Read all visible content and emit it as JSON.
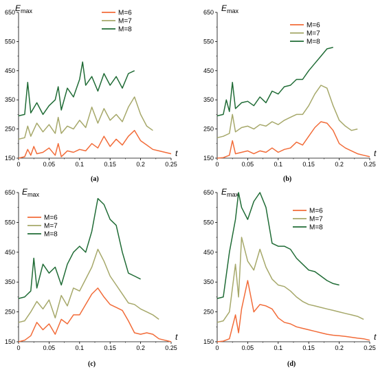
{
  "chart_data": [
    {
      "type": "line",
      "panel_label": "(a)",
      "ylabel_main": "E",
      "ylabel_sub": "max",
      "xlabel": "t",
      "xlim": [
        0,
        0.25
      ],
      "ylim": [
        150,
        650
      ],
      "xticks": [
        "0",
        "0.05",
        "0.1",
        "0.15",
        "0.2",
        "0.25"
      ],
      "yticks": [
        "150",
        "250",
        "350",
        "450",
        "550",
        "650"
      ],
      "legend_position": "top-right",
      "series": [
        {
          "name": "M=6",
          "color": "#f26b38",
          "x": [
            0,
            0.01,
            0.015,
            0.02,
            0.025,
            0.03,
            0.04,
            0.05,
            0.06,
            0.065,
            0.07,
            0.08,
            0.09,
            0.1,
            0.11,
            0.12,
            0.13,
            0.14,
            0.15,
            0.16,
            0.17,
            0.18,
            0.19,
            0.2,
            0.21,
            0.22,
            0.23,
            0.24,
            0.25
          ],
          "y": [
            150,
            155,
            180,
            160,
            190,
            165,
            170,
            185,
            160,
            200,
            155,
            175,
            170,
            180,
            175,
            200,
            185,
            225,
            190,
            215,
            195,
            225,
            245,
            210,
            195,
            180,
            175,
            170,
            165
          ]
        },
        {
          "name": "M=7",
          "color": "#a6a86a",
          "x": [
            0,
            0.01,
            0.015,
            0.02,
            0.03,
            0.04,
            0.05,
            0.06,
            0.065,
            0.07,
            0.08,
            0.09,
            0.1,
            0.11,
            0.12,
            0.13,
            0.14,
            0.15,
            0.16,
            0.17,
            0.18,
            0.19,
            0.2,
            0.21,
            0.22
          ],
          "y": [
            215,
            220,
            260,
            225,
            270,
            240,
            265,
            235,
            290,
            235,
            260,
            250,
            280,
            255,
            325,
            270,
            320,
            280,
            300,
            275,
            325,
            360,
            300,
            260,
            245
          ]
        },
        {
          "name": "M=8",
          "color": "#1f6b35",
          "x": [
            0,
            0.01,
            0.015,
            0.02,
            0.03,
            0.04,
            0.05,
            0.06,
            0.065,
            0.07,
            0.08,
            0.09,
            0.1,
            0.105,
            0.11,
            0.12,
            0.13,
            0.14,
            0.15,
            0.16,
            0.17,
            0.18,
            0.19
          ],
          "y": [
            295,
            300,
            410,
            305,
            340,
            300,
            330,
            350,
            395,
            315,
            390,
            360,
            420,
            480,
            400,
            430,
            380,
            440,
            400,
            430,
            390,
            440,
            450
          ]
        }
      ]
    },
    {
      "type": "line",
      "panel_label": "(b)",
      "ylabel_main": "E",
      "ylabel_sub": "max",
      "xlabel": "t",
      "xlim": [
        0,
        0.25
      ],
      "ylim": [
        150,
        650
      ],
      "xticks": [
        "0",
        "0.05",
        "0.1",
        "0.15",
        "0.2",
        "0.25"
      ],
      "yticks": [
        "150",
        "250",
        "350",
        "450",
        "550",
        "650"
      ],
      "legend_position": "top-right",
      "series": [
        {
          "name": "M=6",
          "color": "#f26b38",
          "x": [
            0,
            0.01,
            0.02,
            0.025,
            0.03,
            0.04,
            0.05,
            0.06,
            0.07,
            0.08,
            0.09,
            0.1,
            0.11,
            0.12,
            0.13,
            0.14,
            0.15,
            0.16,
            0.17,
            0.18,
            0.19,
            0.2,
            0.21,
            0.22,
            0.23,
            0.24,
            0.25
          ],
          "y": [
            150,
            152,
            160,
            210,
            165,
            170,
            175,
            165,
            175,
            170,
            185,
            170,
            180,
            185,
            205,
            195,
            225,
            255,
            275,
            270,
            245,
            200,
            185,
            175,
            165,
            160,
            155
          ]
        },
        {
          "name": "M=7",
          "color": "#a6a86a",
          "x": [
            0,
            0.01,
            0.02,
            0.025,
            0.03,
            0.04,
            0.05,
            0.06,
            0.07,
            0.08,
            0.09,
            0.1,
            0.11,
            0.12,
            0.13,
            0.14,
            0.15,
            0.16,
            0.17,
            0.18,
            0.19,
            0.2,
            0.21,
            0.22,
            0.23
          ],
          "y": [
            220,
            225,
            235,
            300,
            240,
            255,
            260,
            250,
            265,
            260,
            275,
            265,
            280,
            290,
            300,
            300,
            330,
            370,
            400,
            390,
            330,
            280,
            260,
            245,
            250
          ]
        },
        {
          "name": "M=8",
          "color": "#1f6b35",
          "x": [
            0,
            0.01,
            0.015,
            0.02,
            0.025,
            0.03,
            0.04,
            0.05,
            0.06,
            0.07,
            0.08,
            0.09,
            0.1,
            0.11,
            0.12,
            0.13,
            0.14,
            0.15,
            0.16,
            0.17,
            0.18,
            0.19
          ],
          "y": [
            295,
            300,
            350,
            310,
            410,
            320,
            340,
            345,
            330,
            360,
            340,
            380,
            370,
            395,
            400,
            420,
            420,
            450,
            475,
            500,
            525,
            530
          ]
        }
      ]
    },
    {
      "type": "line",
      "panel_label": "(c)",
      "ylabel_main": "E",
      "ylabel_sub": "max",
      "xlabel": "t",
      "xlim": [
        0,
        0.25
      ],
      "ylim": [
        150,
        650
      ],
      "xticks": [
        "0",
        "0.05",
        "0.1",
        "0.15",
        "0.2",
        "0.25"
      ],
      "yticks": [
        "150",
        "250",
        "350",
        "450",
        "550",
        "650"
      ],
      "legend_position": "top-left",
      "series": [
        {
          "name": "M=6",
          "color": "#f26b38",
          "x": [
            0,
            0.01,
            0.02,
            0.03,
            0.04,
            0.05,
            0.06,
            0.07,
            0.08,
            0.09,
            0.1,
            0.11,
            0.12,
            0.13,
            0.14,
            0.15,
            0.16,
            0.17,
            0.18,
            0.19,
            0.2,
            0.21,
            0.22,
            0.23,
            0.24,
            0.25
          ],
          "y": [
            150,
            155,
            170,
            215,
            190,
            210,
            175,
            225,
            210,
            240,
            240,
            275,
            310,
            330,
            300,
            275,
            265,
            255,
            220,
            180,
            175,
            180,
            175,
            160,
            155,
            150
          ]
        },
        {
          "name": "M=7",
          "color": "#a6a86a",
          "x": [
            0,
            0.01,
            0.02,
            0.03,
            0.04,
            0.05,
            0.06,
            0.07,
            0.08,
            0.09,
            0.1,
            0.11,
            0.12,
            0.13,
            0.14,
            0.15,
            0.16,
            0.17,
            0.18,
            0.19,
            0.2,
            0.21,
            0.22,
            0.23
          ],
          "y": [
            215,
            220,
            250,
            285,
            260,
            290,
            230,
            305,
            270,
            330,
            320,
            360,
            400,
            460,
            420,
            370,
            340,
            310,
            280,
            275,
            260,
            250,
            240,
            225
          ]
        },
        {
          "name": "M=8",
          "color": "#1f6b35",
          "x": [
            0,
            0.01,
            0.02,
            0.025,
            0.03,
            0.04,
            0.05,
            0.06,
            0.07,
            0.08,
            0.09,
            0.1,
            0.11,
            0.12,
            0.13,
            0.14,
            0.15,
            0.16,
            0.17,
            0.18,
            0.19,
            0.2
          ],
          "y": [
            295,
            300,
            320,
            430,
            330,
            410,
            380,
            400,
            340,
            410,
            450,
            470,
            450,
            520,
            630,
            610,
            560,
            540,
            450,
            380,
            370,
            360
          ]
        }
      ]
    },
    {
      "type": "line",
      "panel_label": "(d)",
      "ylabel_main": "E",
      "ylabel_sub": "max",
      "xlabel": "t",
      "xlim": [
        0,
        0.25
      ],
      "ylim": [
        150,
        650
      ],
      "xticks": [
        "0",
        "0.05",
        "0.1",
        "0.15",
        "0.2",
        "0.25"
      ],
      "yticks": [
        "150",
        "250",
        "350",
        "450",
        "550",
        "650"
      ],
      "legend_position": "top-right",
      "series": [
        {
          "name": "M=6",
          "color": "#f26b38",
          "x": [
            0,
            0.01,
            0.02,
            0.03,
            0.035,
            0.04,
            0.05,
            0.06,
            0.07,
            0.08,
            0.09,
            0.1,
            0.11,
            0.12,
            0.13,
            0.14,
            0.15,
            0.16,
            0.17,
            0.18,
            0.19,
            0.2,
            0.21,
            0.22,
            0.23,
            0.24,
            0.25
          ],
          "y": [
            150,
            152,
            160,
            240,
            180,
            260,
            355,
            250,
            275,
            270,
            260,
            230,
            215,
            210,
            200,
            195,
            190,
            185,
            180,
            175,
            172,
            170,
            168,
            165,
            162,
            160,
            155
          ]
        },
        {
          "name": "M=7",
          "color": "#a6a86a",
          "x": [
            0,
            0.01,
            0.02,
            0.03,
            0.035,
            0.04,
            0.05,
            0.06,
            0.07,
            0.08,
            0.09,
            0.1,
            0.11,
            0.12,
            0.13,
            0.14,
            0.15,
            0.16,
            0.17,
            0.18,
            0.19,
            0.2,
            0.21,
            0.22,
            0.23,
            0.24
          ],
          "y": [
            215,
            220,
            250,
            410,
            300,
            500,
            420,
            390,
            460,
            400,
            360,
            340,
            335,
            320,
            300,
            285,
            275,
            270,
            265,
            260,
            255,
            250,
            245,
            240,
            235,
            225
          ]
        },
        {
          "name": "M=8",
          "color": "#1f6b35",
          "x": [
            0,
            0.01,
            0.02,
            0.03,
            0.035,
            0.04,
            0.05,
            0.06,
            0.07,
            0.08,
            0.09,
            0.1,
            0.11,
            0.12,
            0.13,
            0.14,
            0.15,
            0.16,
            0.17,
            0.18,
            0.19,
            0.2
          ],
          "y": [
            295,
            300,
            450,
            560,
            650,
            600,
            560,
            620,
            650,
            600,
            480,
            470,
            470,
            460,
            430,
            410,
            390,
            385,
            370,
            355,
            345,
            340
          ]
        }
      ]
    }
  ]
}
